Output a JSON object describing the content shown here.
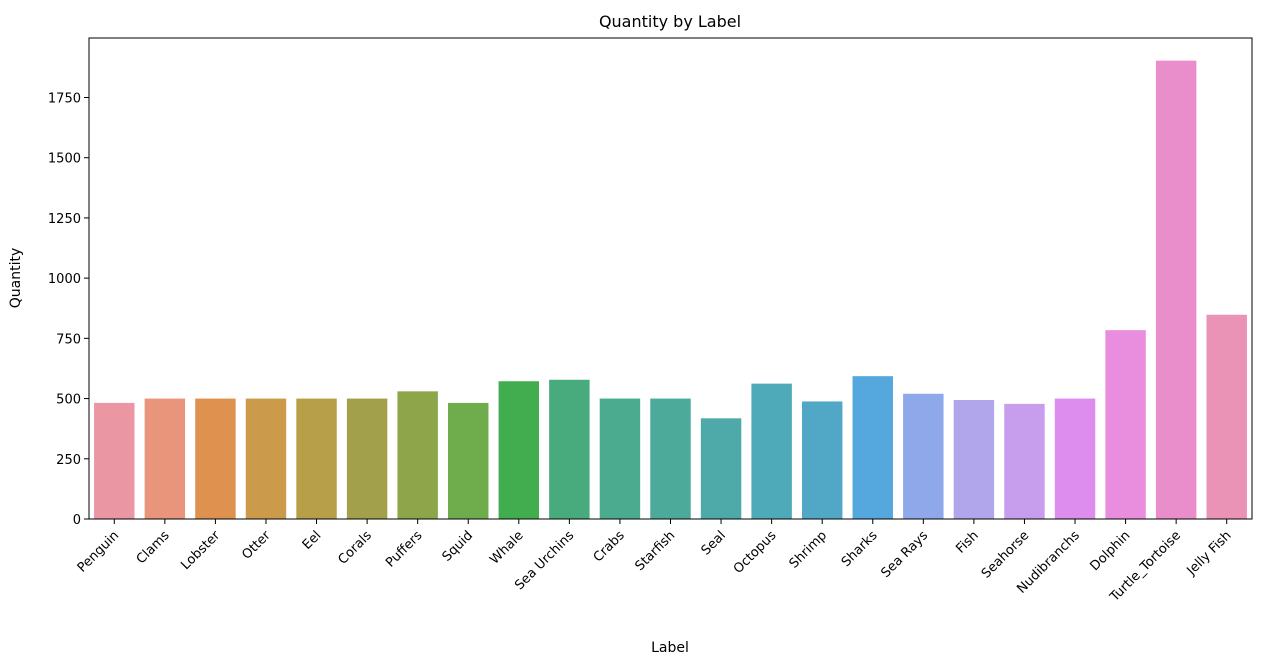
{
  "chart_data": {
    "type": "bar",
    "title": "Quantity by Label",
    "xlabel": "Label",
    "ylabel": "Quantity",
    "ylim": [
      0,
      2000
    ],
    "yticks": [
      0,
      250,
      500,
      750,
      1000,
      1250,
      1500,
      1750
    ],
    "grid": false,
    "categories": [
      "Penguin",
      "Clams",
      "Lobster",
      "Otter",
      "Eel",
      "Corals",
      "Puffers",
      "Squid",
      "Whale",
      "Sea Urchins",
      "Crabs",
      "Starfish",
      "Seal",
      "Octopus",
      "Shrimp",
      "Sharks",
      "Sea Rays",
      "Fish",
      "Seahorse",
      "Nudibranchs",
      "Dolphin",
      "Turtle_Tortoise",
      "Jelly Fish"
    ],
    "values": [
      482,
      500,
      500,
      500,
      500,
      500,
      530,
      482,
      572,
      578,
      500,
      500,
      418,
      562,
      488,
      593,
      520,
      494,
      478,
      500,
      784,
      1903,
      848
    ],
    "colors": [
      "#ea96a3",
      "#e8957c",
      "#df914f",
      "#cb9a4b",
      "#b79f4a",
      "#a2a04a",
      "#8ea54a",
      "#6fac4b",
      "#42ad4f",
      "#48ab7d",
      "#4aab8e",
      "#4caa9b",
      "#4eaaa9",
      "#4ea9b8",
      "#50a7c6",
      "#55a8dd",
      "#8fa8ea",
      "#b1a6ec",
      "#c79ded",
      "#dd8ded",
      "#e98ede",
      "#e98ecb",
      "#ea93b6"
    ]
  }
}
